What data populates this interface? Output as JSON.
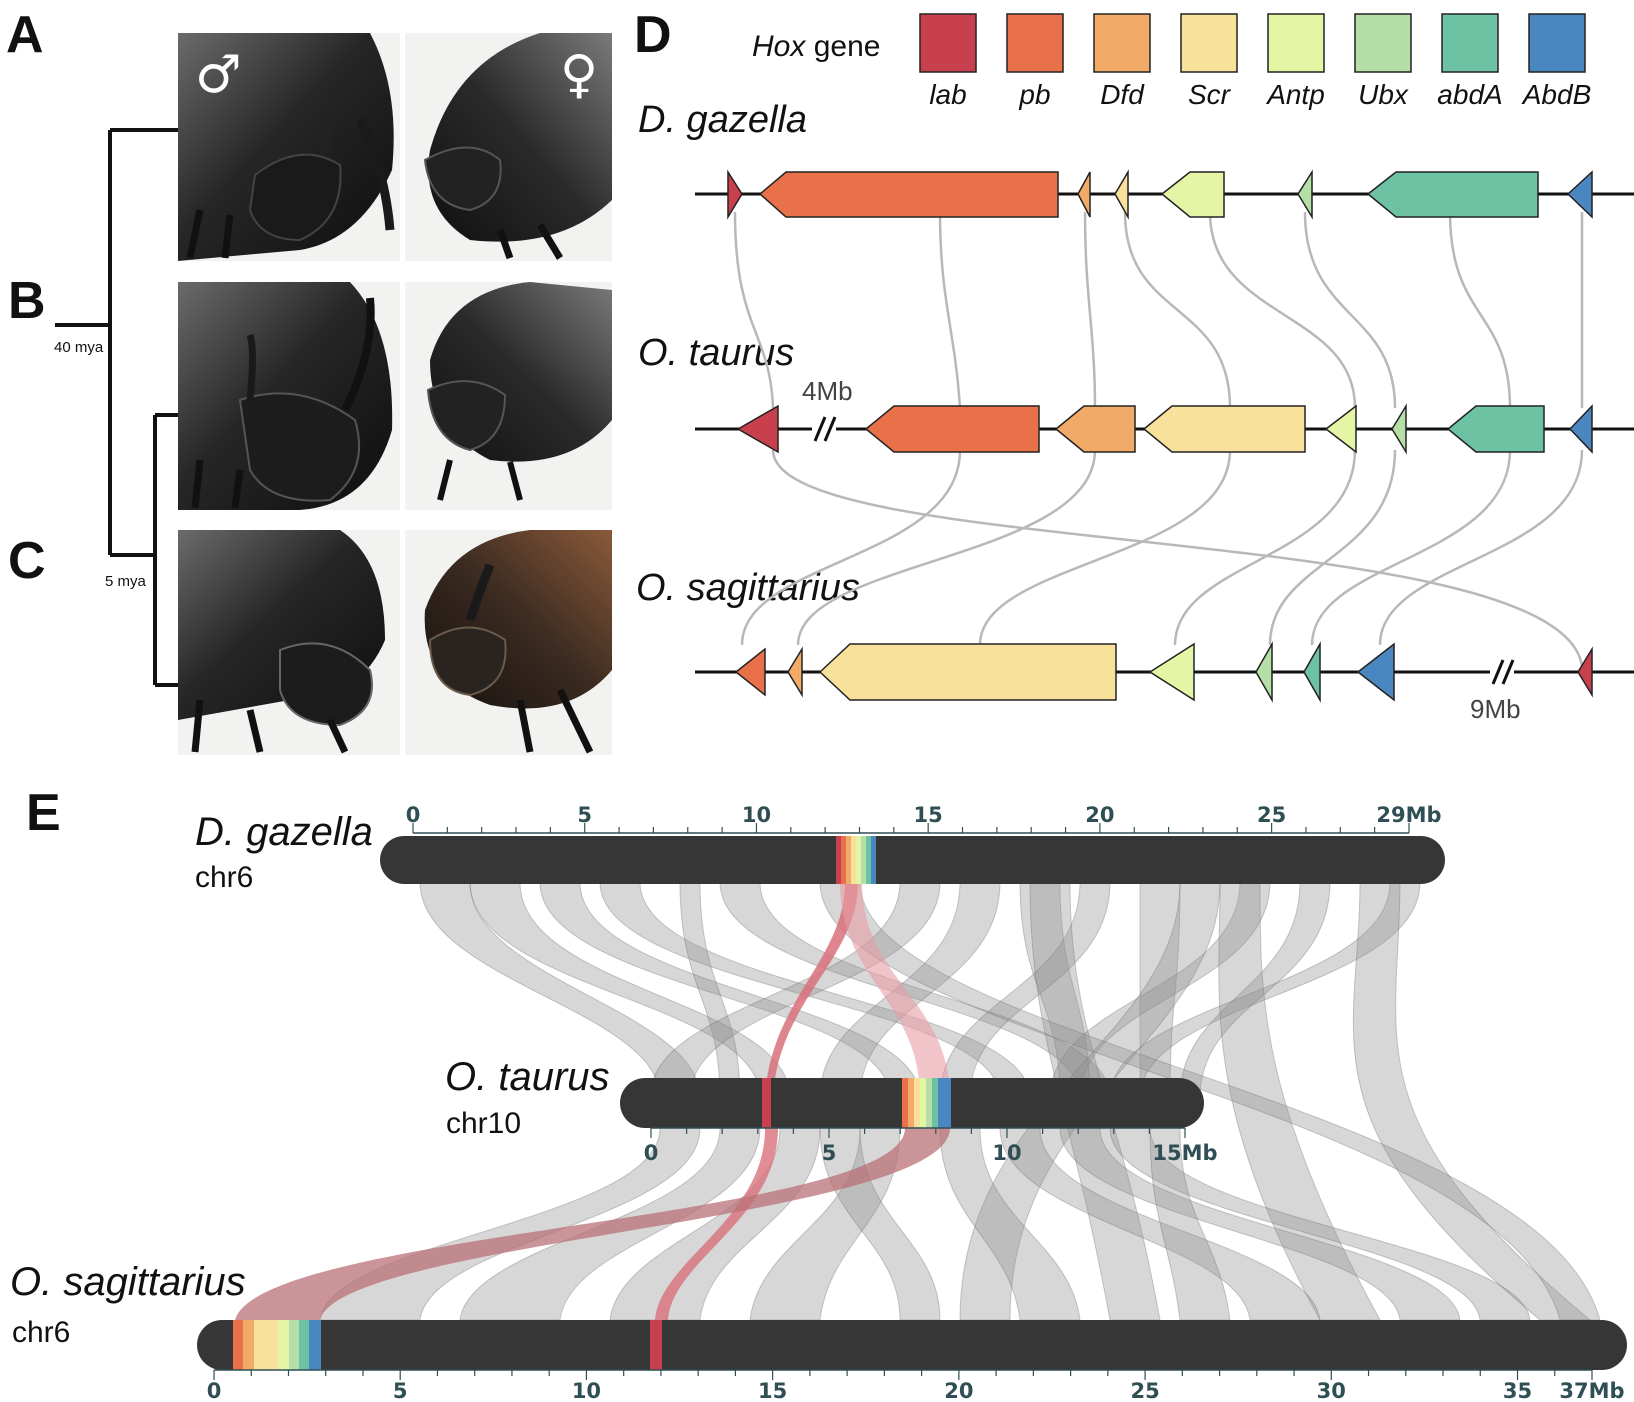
{
  "panels": {
    "A": "A",
    "B": "B",
    "C": "C",
    "D": "D",
    "E": "E"
  },
  "phylogeny": {
    "root_age": "40 mya",
    "inner_age": "5 mya"
  },
  "photos": {
    "male_symbol": "♂",
    "female_symbol": "♀"
  },
  "legend": {
    "title_italic": "Hox",
    "title_rest": " gene",
    "genes": [
      {
        "name": "lab",
        "color": "#c8404e"
      },
      {
        "name": "pb",
        "color": "#e8714a"
      },
      {
        "name": "Dfd",
        "color": "#f2aa68"
      },
      {
        "name": "Scr",
        "color": "#f8e19a"
      },
      {
        "name": "Antp",
        "color": "#e5f5a6"
      },
      {
        "name": "Ubx",
        "color": "#b5dfa6"
      },
      {
        "name": "abdA",
        "color": "#6ec2a4"
      },
      {
        "name": "AbdB",
        "color": "#4a87c0"
      }
    ]
  },
  "panelD": {
    "species": [
      "D. gazella",
      "O. taurus",
      "O. sagittarius"
    ],
    "gap_taurus": "4Mb",
    "gap_sagittarius": "9Mb"
  },
  "panelE": {
    "chromosomes": [
      {
        "species": "D. gazella",
        "chr": "chr6",
        "length_mb": 29,
        "ticks": [
          "0",
          "5",
          "10",
          "15",
          "20",
          "25",
          "29Mb"
        ],
        "tick_values": [
          0,
          5,
          10,
          15,
          20,
          25,
          29
        ]
      },
      {
        "species": "O. taurus",
        "chr": "chr10",
        "length_mb": 15,
        "ticks": [
          "0",
          "5",
          "10",
          "15Mb"
        ],
        "tick_values": [
          0,
          5,
          10,
          15
        ]
      },
      {
        "species": "O. sagittarius",
        "chr": "chr6",
        "length_mb": 37,
        "ticks": [
          "0",
          "5",
          "10",
          "15",
          "20",
          "25",
          "30",
          "35",
          "37Mb"
        ],
        "tick_values": [
          0,
          5,
          10,
          15,
          20,
          25,
          30,
          35,
          37
        ]
      }
    ]
  }
}
